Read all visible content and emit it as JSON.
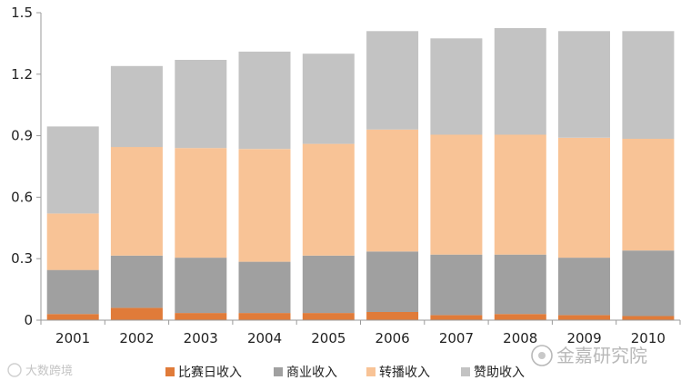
{
  "chart_data": {
    "type": "bar",
    "stacked": true,
    "categories": [
      "2001",
      "2002",
      "2003",
      "2004",
      "2005",
      "2006",
      "2007",
      "2008",
      "2009",
      "2010"
    ],
    "series": [
      {
        "name": "比赛日收入",
        "color": "#e07b39",
        "values": [
          0.03,
          0.06,
          0.035,
          0.035,
          0.035,
          0.04,
          0.025,
          0.03,
          0.025,
          0.02
        ]
      },
      {
        "name": "商业收入",
        "color": "#a0a0a0",
        "values": [
          0.215,
          0.255,
          0.27,
          0.25,
          0.28,
          0.295,
          0.295,
          0.29,
          0.28,
          0.32
        ]
      },
      {
        "name": "转播收入",
        "color": "#f8c396",
        "values": [
          0.275,
          0.53,
          0.535,
          0.55,
          0.545,
          0.595,
          0.585,
          0.585,
          0.585,
          0.545
        ]
      },
      {
        "name": "赞助收入",
        "color": "#c3c3c3",
        "values": [
          0.425,
          0.395,
          0.43,
          0.475,
          0.44,
          0.48,
          0.47,
          0.52,
          0.52,
          0.525
        ]
      }
    ],
    "ylim": [
      0,
      1.5
    ],
    "yticks": [
      "0",
      "0.3",
      "0.6",
      "0.9",
      "1.2",
      "1.5"
    ],
    "grid": false,
    "legend": "bottom"
  },
  "watermark": {
    "brand": "金嘉研究院",
    "source": "大数跨境"
  }
}
